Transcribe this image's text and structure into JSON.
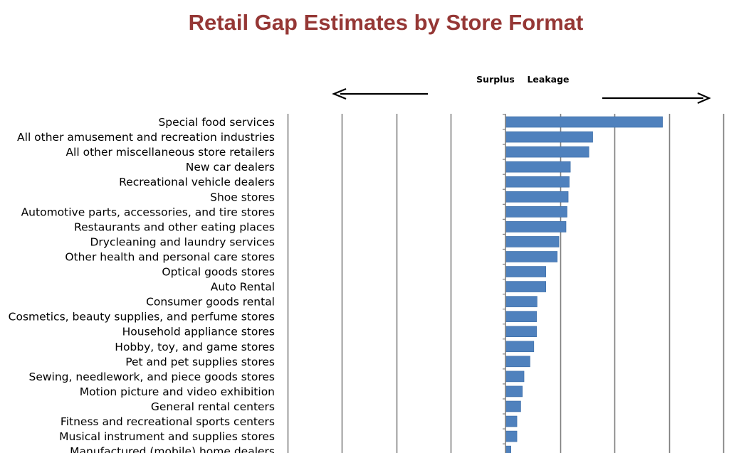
{
  "colors": {
    "title": "#953735",
    "bar": "#4F81BD",
    "bar_stroke": "#3A6BA5",
    "grid": "#808080",
    "axis": "#808080",
    "arrow": "#000000",
    "text": "#000000"
  },
  "chart_data": {
    "type": "bar",
    "orientation": "horizontal",
    "title": "Retail Gap Estimates by Store Format",
    "direction_labels": {
      "negative": "Surplus",
      "positive": "Leakage"
    },
    "arrows": [
      "left-arrow",
      "right-arrow"
    ],
    "grid": true,
    "xlim": [
      -4,
      4
    ],
    "categories": [
      "Special food services",
      "All other amusement and recreation industries",
      "All other miscellaneous store retailers",
      "New car dealers",
      "Recreational vehicle dealers",
      "Shoe stores",
      "Automotive parts, accessories, and tire stores",
      "Restaurants and other eating places",
      "Drycleaning and laundry services",
      "Other health and personal care stores",
      "Optical goods stores",
      "Auto Rental",
      "Consumer goods rental",
      "Cosmetics, beauty supplies, and perfume stores",
      "Household appliance stores",
      "Hobby, toy, and game stores",
      "Pet and pet supplies stores",
      "Sewing, needlework, and piece goods stores",
      "Motion picture and video exhibition",
      "General rental centers",
      "Fitness and recreational sports centers",
      "Musical instrument and supplies stores",
      "Manufactured (mobile) home dealers"
    ],
    "values": [
      2.88,
      1.6,
      1.53,
      1.19,
      1.17,
      1.15,
      1.13,
      1.11,
      0.98,
      0.95,
      0.74,
      0.74,
      0.58,
      0.57,
      0.57,
      0.52,
      0.45,
      0.34,
      0.31,
      0.28,
      0.21,
      0.21,
      0.1
    ]
  }
}
